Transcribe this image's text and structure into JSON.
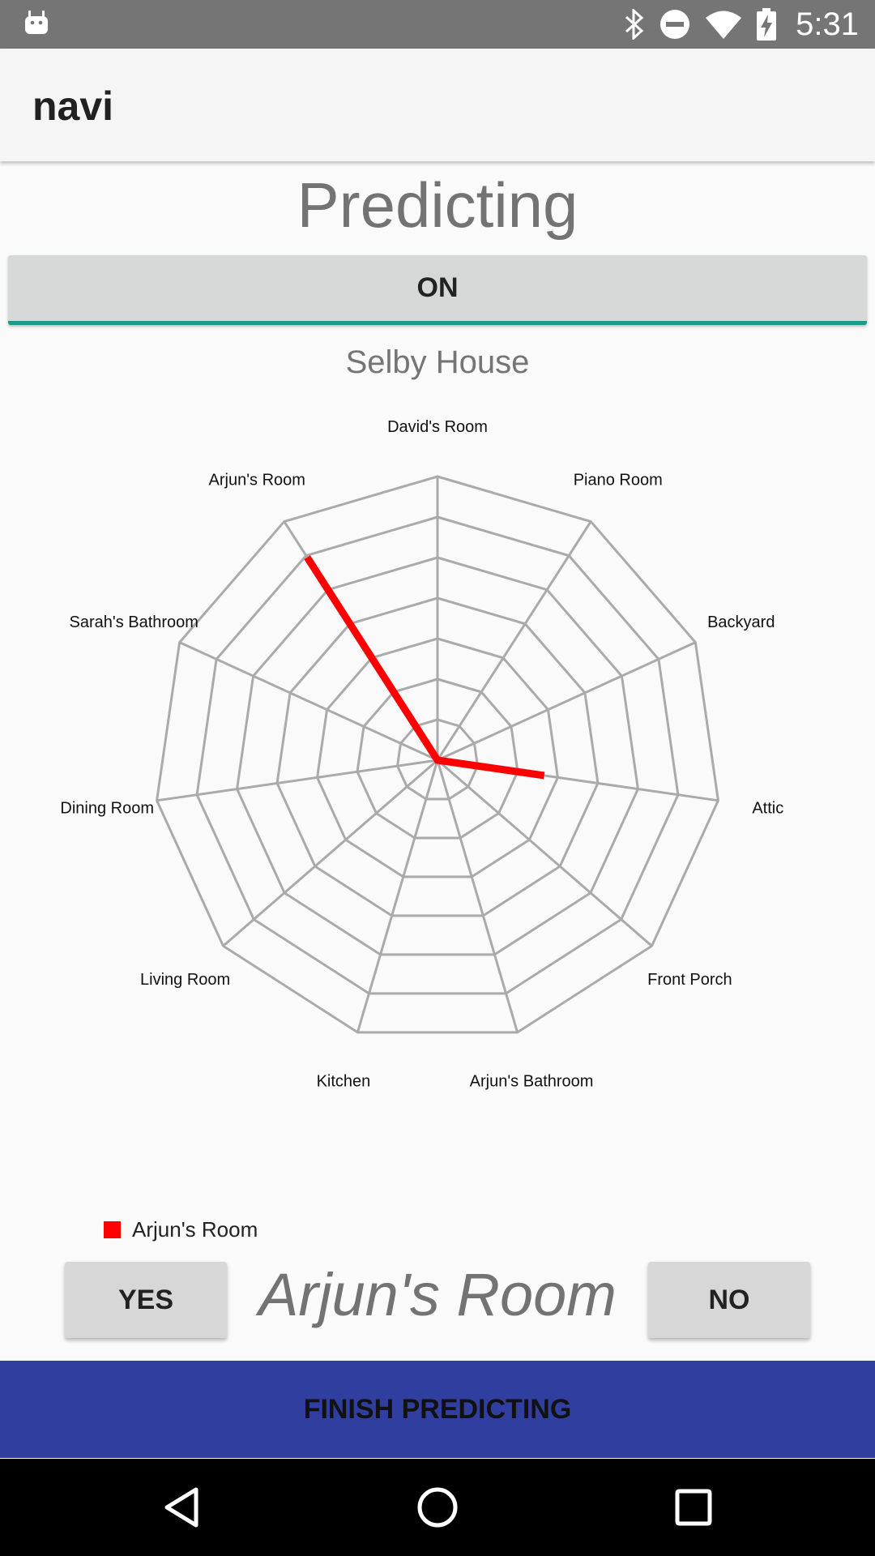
{
  "status_bar": {
    "time": "5:31",
    "icons": [
      "android-icon",
      "bluetooth-icon",
      "do-not-disturb-icon",
      "wifi-icon",
      "battery-charging-icon"
    ]
  },
  "app_bar": {
    "title": "navi"
  },
  "heading": "Predicting",
  "toggle": {
    "label": "ON"
  },
  "house_name": "Selby House",
  "chart_data": {
    "type": "radar",
    "axes": [
      "David's Room",
      "Piano Room",
      "Backyard",
      "Attic",
      "Front Porch",
      "Arjun's Bathroom",
      "Kitchen",
      "Living Room",
      "Dining Room",
      "Sarah's Bathroom",
      "Arjun's Room"
    ],
    "levels": 7,
    "series": [
      {
        "name": "Arjun's Room",
        "color": "#ff0000",
        "values": [
          0,
          0,
          0,
          0.38,
          0,
          0,
          0,
          0,
          0,
          0,
          0.85
        ]
      }
    ],
    "legend_position": "bottom-left"
  },
  "prediction": "Arjun's Room",
  "buttons": {
    "yes": "YES",
    "no": "NO",
    "finish": "FINISH PREDICTING"
  },
  "nav": {
    "icons": [
      "back-icon",
      "home-icon",
      "recents-icon"
    ]
  },
  "colors": {
    "accent": "#1a998c",
    "primary": "#303f9f",
    "series": "#ff0000"
  }
}
